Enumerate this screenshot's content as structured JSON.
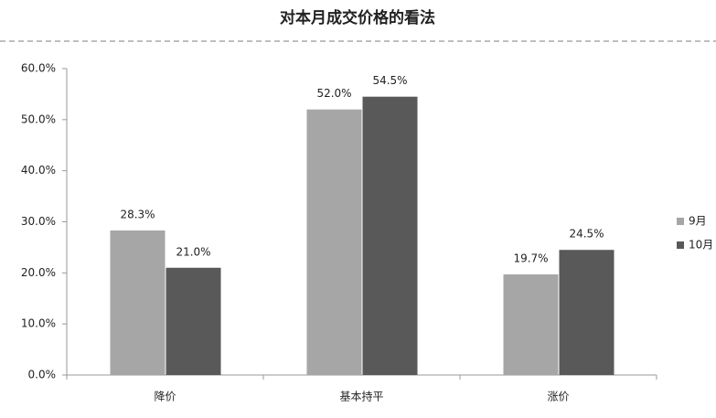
{
  "chart_data": {
    "type": "bar",
    "title": "对本月成交价格的看法",
    "categories": [
      "降价",
      "基本持平",
      "涨价"
    ],
    "series": [
      {
        "name": "9月",
        "color": "#a6a6a6",
        "values": [
          28.3,
          52.0,
          19.7
        ],
        "value_labels": [
          "28.3%",
          "52.0%",
          "19.7%"
        ]
      },
      {
        "name": "10月",
        "color": "#595959",
        "values": [
          21.0,
          54.5,
          24.5
        ],
        "value_labels": [
          "21.0%",
          "54.5%",
          "24.5%"
        ]
      }
    ],
    "ylim": [
      0,
      60
    ],
    "yticks": [
      {
        "value": 0,
        "label": "0.0%"
      },
      {
        "value": 10,
        "label": "10.0%"
      },
      {
        "value": 20,
        "label": "20.0%"
      },
      {
        "value": 30,
        "label": "30.0%"
      },
      {
        "value": 40,
        "label": "40.0%"
      },
      {
        "value": 50,
        "label": "50.0%"
      },
      {
        "value": 60,
        "label": "60.0%"
      }
    ],
    "grid": false,
    "legend": "right"
  }
}
